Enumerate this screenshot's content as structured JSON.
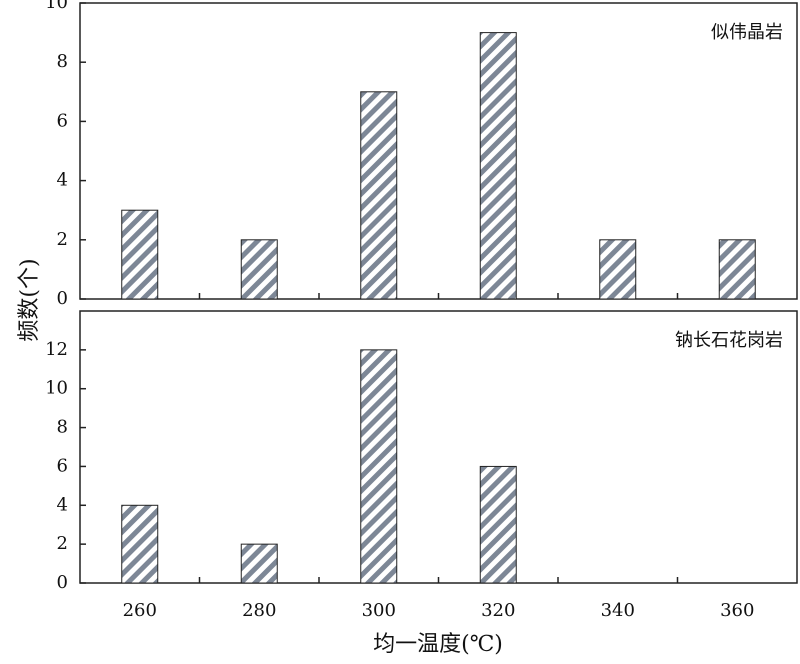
{
  "chart_data": [
    {
      "type": "bar",
      "title": "似伟晶岩",
      "ylabel": "频数(个)",
      "categories": [
        "260",
        "280",
        "300",
        "320",
        "340",
        "360"
      ],
      "values": [
        3,
        2,
        7,
        9,
        2,
        2
      ],
      "color": "#7d8796",
      "ylim": [
        0,
        10
      ],
      "yticks": [
        0,
        2,
        4,
        6,
        8,
        10
      ]
    },
    {
      "type": "bar",
      "title": "钠长石花岗岩",
      "xlabel": "均一温度(℃)",
      "categories": [
        "260",
        "280",
        "300",
        "320",
        "340",
        "360"
      ],
      "values": [
        4,
        2,
        12,
        6,
        0,
        0
      ],
      "color": "#7d8796",
      "ylim": [
        0,
        14
      ],
      "yticks": [
        0,
        2,
        4,
        6,
        8,
        10,
        12
      ]
    }
  ]
}
